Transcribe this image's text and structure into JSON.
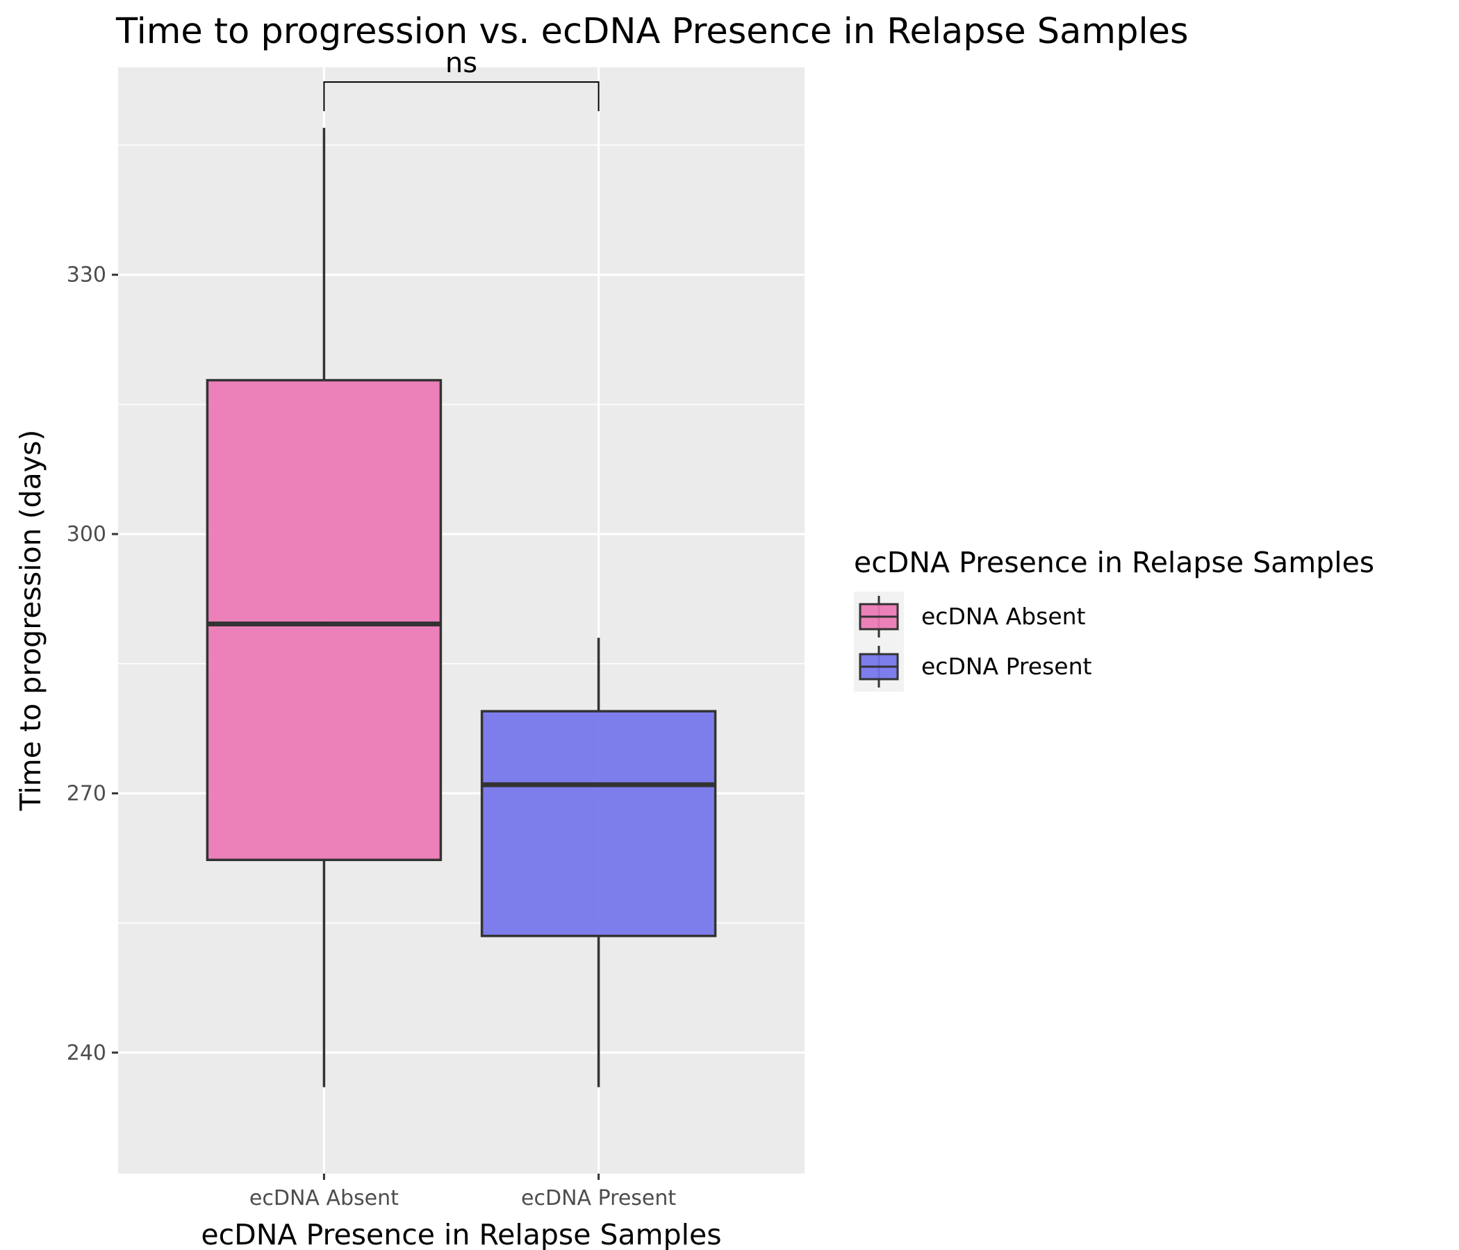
{
  "chart_data": {
    "type": "box",
    "title": "Time to progression vs. ecDNA Presence in Relapse Samples",
    "xlabel": "ecDNA Presence in Relapse Samples",
    "ylabel": "Time to progression (days)",
    "categories": [
      "ecDNA Absent",
      "ecDNA Present"
    ],
    "ylim": [
      226,
      354
    ],
    "y_ticks": [
      240,
      270,
      300,
      330
    ],
    "grid": true,
    "boxes": [
      {
        "category": "ecDNA Absent",
        "whisker_low": 236,
        "q1": 262.3,
        "median": 289.6,
        "q3": 317.8,
        "whisker_high": 347,
        "color": "#ec77b5"
      },
      {
        "category": "ecDNA Present",
        "whisker_low": 236,
        "q1": 253.5,
        "median": 271,
        "q3": 279.5,
        "whisker_high": 288,
        "color": "#7473ec"
      }
    ],
    "annotation": {
      "text": "ns",
      "between": [
        "ecDNA Absent",
        "ecDNA Present"
      ],
      "y": 352.3
    },
    "legend": {
      "title": "ecDNA Presence in Relapse Samples",
      "placement": "right",
      "entries": [
        "ecDNA Absent",
        "ecDNA Present"
      ]
    }
  }
}
